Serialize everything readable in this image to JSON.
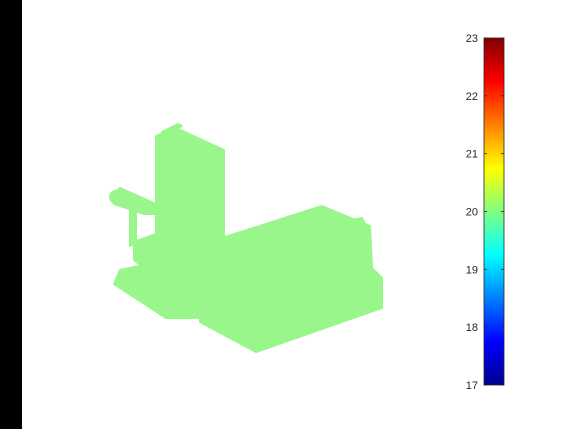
{
  "chart_data": {
    "type": "heatmap",
    "description_values": {
      "uniform_value": 20.1
    },
    "colorbar": {
      "colormap": "jet",
      "limits": [
        17,
        23
      ],
      "ticks": [
        17,
        18,
        19,
        20,
        21,
        22,
        23
      ],
      "tick_labels": [
        "17",
        "18",
        "19",
        "20",
        "21",
        "22",
        "23"
      ]
    },
    "title": "",
    "xlabel": "",
    "ylabel": "",
    "grid": false,
    "legend": "none",
    "colors": {
      "figure_background": "#ffffff",
      "outer_background": "#000000",
      "object_fill": "#98f68a",
      "tick_text": "#262626"
    }
  }
}
